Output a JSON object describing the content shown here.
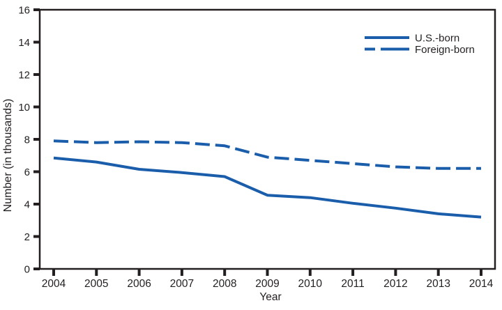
{
  "chart_data": {
    "type": "line",
    "title": "",
    "xlabel": "Year",
    "ylabel": "Number (in thousands)",
    "x": [
      2004,
      2005,
      2006,
      2007,
      2008,
      2009,
      2010,
      2011,
      2012,
      2013,
      2014
    ],
    "series": [
      {
        "name": "U.S.-born",
        "line_style": "solid",
        "values": [
          6.85,
          6.6,
          6.15,
          5.95,
          5.7,
          4.55,
          4.4,
          4.05,
          3.75,
          3.4,
          3.2
        ]
      },
      {
        "name": "Foreign-born",
        "line_style": "dashed",
        "values": [
          7.9,
          7.8,
          7.85,
          7.8,
          7.6,
          6.9,
          6.7,
          6.5,
          6.3,
          6.2,
          6.2
        ]
      }
    ],
    "ylim": [
      0,
      16
    ],
    "yticks": [
      0,
      2,
      4,
      6,
      8,
      10,
      12,
      14,
      16
    ],
    "grid": false,
    "legend_position": "upper-right",
    "colors": {
      "line": "#1a5dab",
      "axis": "#231f20",
      "background": "#ffffff"
    }
  }
}
